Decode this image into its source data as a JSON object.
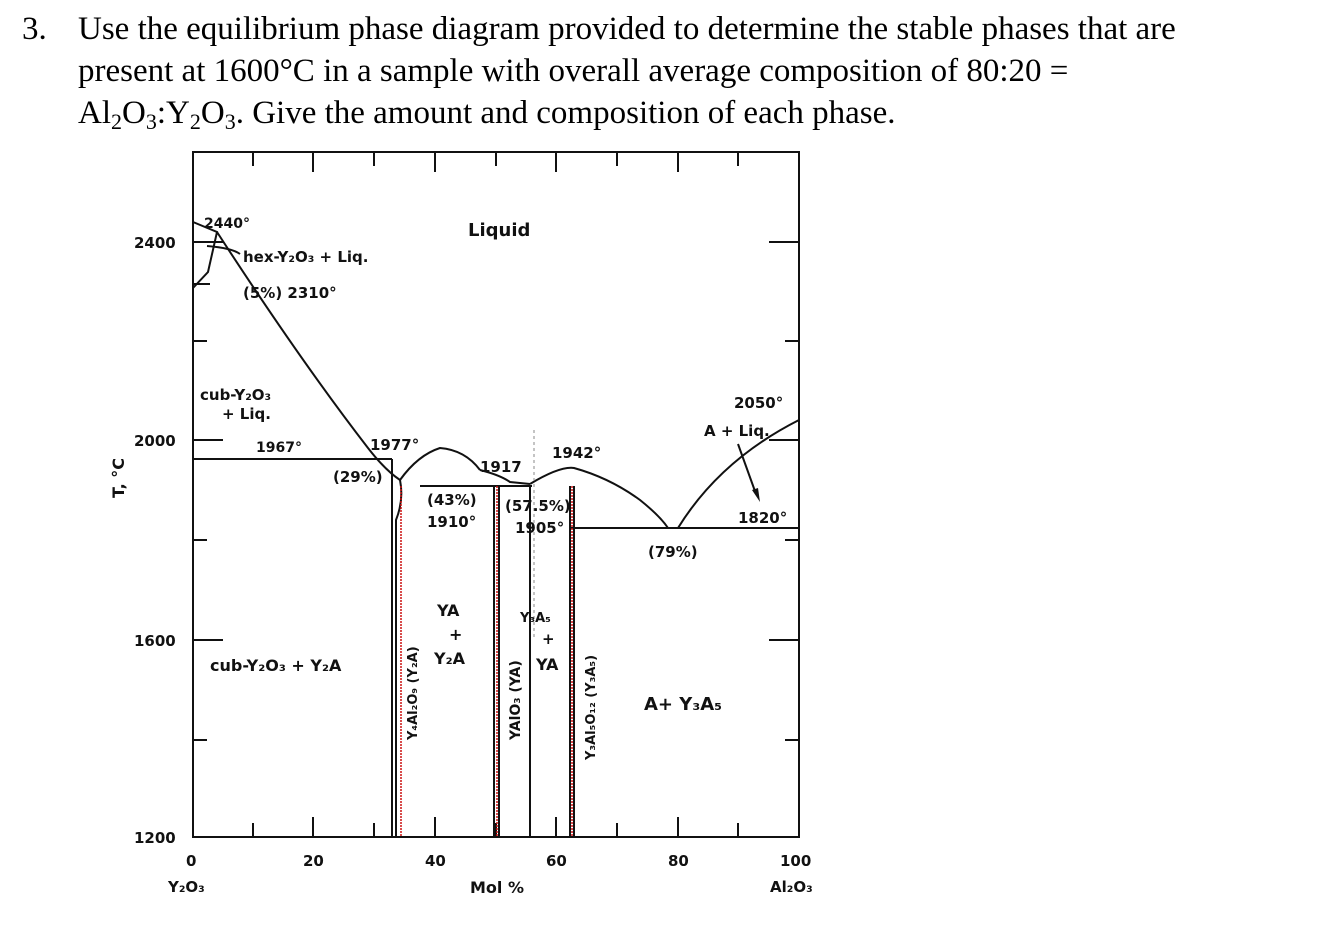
{
  "question": {
    "number": "3.",
    "line1": "Use the equilibrium phase diagram provided to determine the stable phases that are",
    "line2": "present at 1600°C in a sample with overall average composition of 80:20 =",
    "line3_a": "Al",
    "line3_a_sub1": "2",
    "line3_a_mid": "O",
    "line3_a_sub2": "3",
    "line3_b": ":Y",
    "line3_b_sub1": "2",
    "line3_b_mid": "O",
    "line3_b_sub2": "3",
    "line3_c": ".   Give the amount and composition of each phase."
  },
  "diagram": {
    "y_axis_title": "T, °C",
    "x_axis_title": "Mol %",
    "x_left_end": "Y₂O₃",
    "x_right_end": "Al₂O₃",
    "x_ticks": [
      "0",
      "20",
      "40",
      "60",
      "80",
      "100"
    ],
    "y_ticks": [
      "2400",
      "2000",
      "1600",
      "1200"
    ],
    "regions": {
      "liquid": "Liquid",
      "hex_liq": "hex-Y₂O₃ + Liq.",
      "hex_pct": "(5%) 2310°",
      "cub_liq_1": "cub-Y₂O₃",
      "cub_liq_2": "+ Liq.",
      "cub_y2a": "cub-Y₂O₃ + Y₂A",
      "ya_y2a_1": "YA",
      "ya_y2a_2": "+",
      "ya_y2a_3": "Y₂A",
      "y3a5_ya_1": "Y₃A₅",
      "y3a5_ya_2": "+",
      "y3a5_ya_3": "YA",
      "a_y3a5": "A+ Y₃A₅",
      "a_liq": "A + Liq."
    },
    "temps": {
      "t2440": "2440°",
      "t1967": "1967°",
      "t1977": "1977°",
      "t29": "(29%)",
      "t1917": "1917",
      "t1942": "1942°",
      "t43": "(43%)",
      "t1910": "1910°",
      "t575": "(57.5%)",
      "t1905": "1905°",
      "t2050": "2050°",
      "t1820": "1820°",
      "t79": "(79%)"
    },
    "compounds": {
      "y4a": "Y₄Al₂O₉ (Y₂A)",
      "ya": "YAlO₃ (YA)",
      "y3a5": "Y₃Al₅O₁₂ (Y₃A₅)"
    },
    "compound_line_color": "#cc1111"
  }
}
